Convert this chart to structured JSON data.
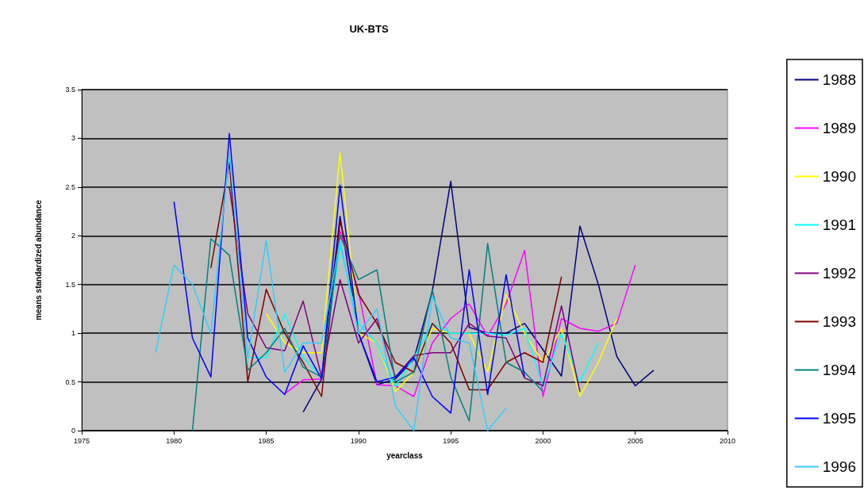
{
  "chart_data": {
    "type": "line",
    "title": "UK-BTS",
    "xlabel": "yearclass",
    "ylabel": "means standardized abundance",
    "x": [
      1979,
      1980,
      1981,
      1982,
      1983,
      1984,
      1985,
      1986,
      1987,
      1988,
      1989,
      1990,
      1991,
      1992,
      1993,
      1994,
      1995,
      1996,
      1997,
      1998,
      1999,
      2000,
      2001,
      2002,
      2003,
      2004,
      2005,
      2006
    ],
    "xlim": [
      1975,
      2010
    ],
    "xticks": [
      1975,
      1980,
      1985,
      1990,
      1995,
      2000,
      2005,
      2010
    ],
    "ylim": [
      0,
      3.5
    ],
    "yticks": [
      0,
      0.5,
      1,
      1.5,
      2,
      2.5,
      3,
      3.5
    ],
    "grid": "y",
    "legend": "right",
    "marker": "none",
    "line_style": "solid",
    "series": [
      {
        "name": "1988",
        "color": "#000080",
        "values": [
          null,
          null,
          null,
          null,
          null,
          null,
          null,
          null,
          0.19,
          0.53,
          2.2,
          1.0,
          0.47,
          0.53,
          0.73,
          1.43,
          2.56,
          1.06,
          1.0,
          1.0,
          1.1,
          0.83,
          0.56,
          2.1,
          1.5,
          0.76,
          0.46,
          0.62
        ]
      },
      {
        "name": "1989",
        "color": "#ff00ff",
        "values": [
          null,
          null,
          null,
          null,
          null,
          null,
          null,
          0.38,
          0.52,
          0.53,
          2.05,
          1.43,
          0.47,
          0.46,
          0.35,
          0.9,
          1.15,
          1.3,
          0.97,
          1.3,
          1.85,
          0.35,
          1.15,
          1.05,
          1.02,
          1.1,
          1.7,
          null
        ]
      },
      {
        "name": "1990",
        "color": "#ffff00",
        "values": [
          null,
          null,
          null,
          null,
          null,
          null,
          1.2,
          0.9,
          0.8,
          0.8,
          2.85,
          1.0,
          0.9,
          0.4,
          0.6,
          1.05,
          1.0,
          1.0,
          0.6,
          1.4,
          1.0,
          0.7,
          1.05,
          0.35,
          0.7,
          1.15,
          null,
          null
        ]
      },
      {
        "name": "1991",
        "color": "#00ffff",
        "values": [
          null,
          null,
          null,
          null,
          null,
          0.75,
          0.75,
          1.2,
          0.75,
          0.55,
          1.9,
          1.1,
          0.9,
          0.45,
          0.75,
          1.1,
          1.0,
          1.0,
          1.0,
          0.98,
          1.05,
          0.45,
          1.0,
          0.5,
          0.9,
          null,
          null,
          null
        ]
      },
      {
        "name": "1992",
        "color": "#800080",
        "values": [
          null,
          null,
          null,
          null,
          2.5,
          1.2,
          0.85,
          0.82,
          1.33,
          0.55,
          1.55,
          0.9,
          1.15,
          0.55,
          0.77,
          0.8,
          0.8,
          1.1,
          0.97,
          0.95,
          0.54,
          0.46,
          1.28,
          0.4,
          null,
          null,
          null,
          null
        ]
      },
      {
        "name": "1993",
        "color": "#800000",
        "values": [
          null,
          null,
          null,
          1.67,
          2.75,
          0.5,
          1.45,
          1.0,
          0.7,
          0.35,
          2.15,
          1.4,
          1.1,
          0.7,
          0.6,
          1.1,
          0.9,
          0.42,
          0.42,
          0.7,
          0.8,
          0.7,
          1.58,
          null,
          null,
          null,
          null,
          null
        ]
      },
      {
        "name": "1994",
        "color": "#008080",
        "values": [
          null,
          null,
          0,
          1.97,
          1.8,
          0.62,
          0.8,
          1.05,
          0.65,
          0.55,
          2.0,
          1.55,
          1.65,
          0.5,
          0.6,
          1.45,
          0.55,
          0.1,
          1.92,
          0.7,
          0.6,
          0.4,
          null,
          null,
          null,
          null,
          null,
          null
        ]
      },
      {
        "name": "1995",
        "color": "#0000ff",
        "values": [
          null,
          2.35,
          0.95,
          0.55,
          3.05,
          0.95,
          0.55,
          0.37,
          0.87,
          0.53,
          2.52,
          1.0,
          0.5,
          0.55,
          0.75,
          0.35,
          0.18,
          1.65,
          0.37,
          1.6,
          0.55,
          null,
          null,
          null,
          null,
          null,
          null,
          null
        ]
      },
      {
        "name": "1996",
        "color": "#33ccff",
        "values": [
          0.8,
          1.7,
          1.5,
          1.0,
          2.85,
          0.75,
          1.95,
          0.6,
          0.9,
          0.9,
          1.95,
          1.0,
          1.25,
          0.25,
          0,
          1.38,
          0.95,
          0.9,
          0,
          0.23,
          null,
          null,
          null,
          null,
          null,
          null,
          null,
          null
        ]
      }
    ]
  }
}
